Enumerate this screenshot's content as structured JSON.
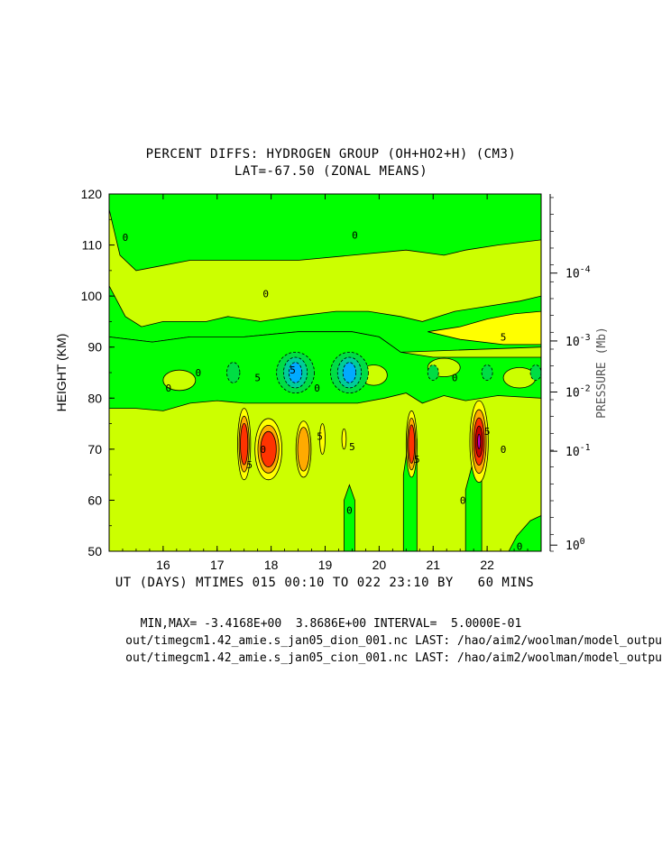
{
  "header": {
    "title": "PERCENT DIFFS: HYDROGEN GROUP (OH+HO2+H) (CM3)",
    "subtitle": "LAT=-67.50 (ZONAL MEANS)"
  },
  "footer": {
    "xlabel": "UT (DAYS) MTIMES 015 00:10 TO 022 23:10 BY   60 MINS",
    "stats": "MIN,MAX= -3.4168E+00  3.8686E+00 INTERVAL=  5.0000E-01",
    "file1": "out/timegcm1.42_amie.s_jan05_dion_001.nc LAST: /hao/aim2/woolman/model_outpu",
    "file2": "out/timegcm1.42_amie.s_jan05_cion_001.nc LAST: /hao/aim2/woolman/model_outpu"
  },
  "chart_data": {
    "type": "contour",
    "title": "PERCENT DIFFS: HYDROGEN GROUP (OH+HO2+H) (CM3)",
    "subtitle": "LAT=-67.50 (ZONAL MEANS)",
    "xlabel": "UT (DAYS) MTIMES 015 00:10 TO 022 23:10 BY   60 MINS",
    "ylabel": "HEIGHT (KM)",
    "y2label": "PRESSURE (Mb)",
    "xlim": [
      15.0,
      23.0
    ],
    "ylim": [
      50,
      120
    ],
    "x_ticks": [
      16,
      17,
      18,
      19,
      20,
      21,
      22
    ],
    "x_tick_labels": [
      "16",
      "17",
      "18",
      "19",
      "20",
      "21",
      "22"
    ],
    "y_ticks": [
      50,
      60,
      70,
      80,
      90,
      100,
      110,
      120
    ],
    "y_tick_labels": [
      "50",
      "60",
      "70",
      "80",
      "90",
      "100",
      "110",
      "120"
    ],
    "y2_ticks": [
      {
        "height": 104.5,
        "base": "10",
        "exp": "-4"
      },
      {
        "height": 91.2,
        "base": "10",
        "exp": "-3"
      },
      {
        "height": 81.2,
        "base": "10",
        "exp": "-2"
      },
      {
        "height": 69.6,
        "base": "10",
        "exp": "-1"
      },
      {
        "height": 51.2,
        "base": "10",
        "exp": "0"
      }
    ],
    "min": -3.4168,
    "max": 3.8686,
    "interval": 0.5,
    "colors": {
      "neg_high": "#00ff00",
      "near_zero": "#ccff00",
      "pos_low": "#ffff00",
      "pos_mid": "#ffaa00",
      "pos_high": "#ff3300",
      "pos_peak": "#cc0000",
      "extreme_pos": "#cc00cc",
      "extreme_neg": "#00aaff"
    },
    "positive_peaks": [
      {
        "x": 17.5,
        "y": 71,
        "max": 3.0
      },
      {
        "x": 17.95,
        "y": 70,
        "max": 2.5
      },
      {
        "x": 18.6,
        "y": 70,
        "max": 2.0
      },
      {
        "x": 20.6,
        "y": 71,
        "max": 2.5
      },
      {
        "x": 21.85,
        "y": 71.5,
        "max": 3.87
      }
    ],
    "negative_peaks": [
      {
        "x": 18.45,
        "y": 85,
        "min": -2.5
      },
      {
        "x": 19.45,
        "y": 85,
        "min": -3.42
      }
    ],
    "contour_labels": [
      {
        "text": "0",
        "x": 15.3,
        "y": 111.5
      },
      {
        "text": "0",
        "x": 19.55,
        "y": 112
      },
      {
        "text": "0",
        "x": 17.9,
        "y": 100.5
      },
      {
        "text": "5",
        "x": 22.3,
        "y": 92
      },
      {
        "text": "0",
        "x": 16.1,
        "y": 82
      },
      {
        "text": "0",
        "x": 16.65,
        "y": 85
      },
      {
        "text": "5",
        "x": 17.75,
        "y": 84
      },
      {
        "text": "5",
        "x": 18.4,
        "y": 85.5
      },
      {
        "text": "0",
        "x": 18.85,
        "y": 82
      },
      {
        "text": "0",
        "x": 21.4,
        "y": 84
      },
      {
        "text": "5",
        "x": 18.9,
        "y": 72.5
      },
      {
        "text": "5",
        "x": 19.5,
        "y": 70.5
      },
      {
        "text": "5",
        "x": 17.6,
        "y": 67
      },
      {
        "text": "0",
        "x": 17.85,
        "y": 70
      },
      {
        "text": "5",
        "x": 20.7,
        "y": 68
      },
      {
        "text": "5",
        "x": 22.0,
        "y": 73.5
      },
      {
        "text": "0",
        "x": 22.3,
        "y": 70
      },
      {
        "text": "0",
        "x": 19.45,
        "y": 58
      },
      {
        "text": "0",
        "x": 21.55,
        "y": 60
      },
      {
        "text": "0",
        "x": 22.6,
        "y": 51
      }
    ]
  }
}
